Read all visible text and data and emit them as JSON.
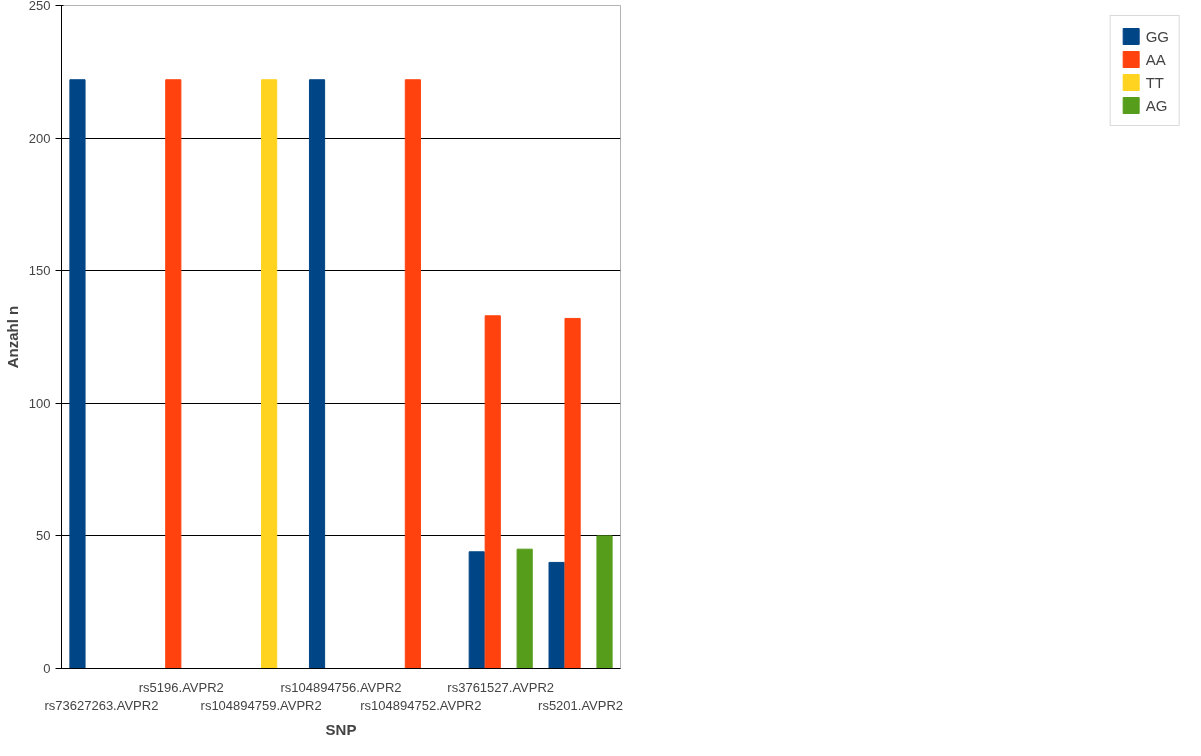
{
  "chart_data": {
    "type": "bar",
    "xlabel": "SNP",
    "ylabel": "Anzahl n",
    "categories": [
      "rs73627263.AVPR2",
      "rs5196.AVPR2",
      "rs104894759.AVPR2",
      "rs104894756.AVPR2",
      "rs104894752.AVPR2",
      "rs3761527.AVPR2",
      "rs5201.AVPR2"
    ],
    "series": [
      {
        "name": "GG",
        "color": "#004586",
        "values": [
          222,
          null,
          null,
          222,
          null,
          44,
          40
        ]
      },
      {
        "name": "AA",
        "color": "#ff420e",
        "values": [
          null,
          222,
          null,
          null,
          222,
          133,
          132
        ]
      },
      {
        "name": "TT",
        "color": "#ffd320",
        "values": [
          null,
          null,
          222,
          null,
          null,
          null,
          null
        ]
      },
      {
        "name": "AG",
        "color": "#579d1c",
        "values": [
          null,
          null,
          null,
          null,
          null,
          45,
          50
        ]
      }
    ],
    "ylim": [
      0,
      250
    ],
    "yticks": [
      0,
      50,
      100,
      150,
      200,
      250
    ],
    "grid": "y",
    "legend": "top right"
  }
}
